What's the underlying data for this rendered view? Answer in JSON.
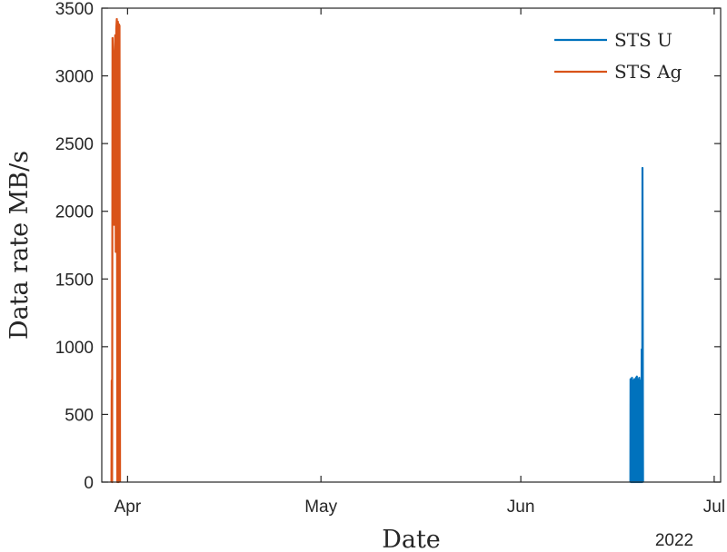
{
  "chart_data": {
    "type": "line",
    "title": "",
    "xlabel": "Date",
    "ylabel": "Data rate MB/s",
    "x_secondary_label": "2022",
    "x_ticks": [
      "Apr",
      "May",
      "Jun",
      "Jul"
    ],
    "x_tick_dates": [
      "2022-04-01",
      "2022-05-01",
      "2022-06-01",
      "2022-07-01"
    ],
    "xlim": [
      "2022-03-28",
      "2022-07-02"
    ],
    "ylim": [
      0,
      3500
    ],
    "y_ticks": [
      0,
      500,
      1000,
      1500,
      2000,
      2500,
      3000,
      3500
    ],
    "grid": false,
    "legend_position": "top-right",
    "series": [
      {
        "name": "STS U",
        "color": "#0072BD",
        "points": [
          {
            "x": "2022-06-18 00:00",
            "y": 0
          },
          {
            "x": "2022-06-18 00:30",
            "y": 760
          },
          {
            "x": "2022-06-18 02:00",
            "y": 0
          },
          {
            "x": "2022-06-18 03:00",
            "y": 740
          },
          {
            "x": "2022-06-18 05:00",
            "y": 0
          },
          {
            "x": "2022-06-18 06:00",
            "y": 770
          },
          {
            "x": "2022-06-18 08:00",
            "y": 0
          },
          {
            "x": "2022-06-18 09:00",
            "y": 750
          },
          {
            "x": "2022-06-18 11:00",
            "y": 0
          },
          {
            "x": "2022-06-18 12:00",
            "y": 730
          },
          {
            "x": "2022-06-18 14:00",
            "y": 0
          },
          {
            "x": "2022-06-18 15:00",
            "y": 760
          },
          {
            "x": "2022-06-18 17:00",
            "y": 0
          },
          {
            "x": "2022-06-18 18:00",
            "y": 740
          },
          {
            "x": "2022-06-18 20:00",
            "y": 0
          },
          {
            "x": "2022-06-18 21:00",
            "y": 770
          },
          {
            "x": "2022-06-18 23:00",
            "y": 0
          },
          {
            "x": "2022-06-19 00:00",
            "y": 780
          },
          {
            "x": "2022-06-19 02:00",
            "y": 0
          },
          {
            "x": "2022-06-19 03:00",
            "y": 760
          },
          {
            "x": "2022-06-19 05:00",
            "y": 0
          },
          {
            "x": "2022-06-19 06:00",
            "y": 740
          },
          {
            "x": "2022-06-19 08:00",
            "y": 0
          },
          {
            "x": "2022-06-19 09:00",
            "y": 770
          },
          {
            "x": "2022-06-19 11:00",
            "y": 0
          },
          {
            "x": "2022-06-19 12:00",
            "y": 750
          },
          {
            "x": "2022-06-19 14:00",
            "y": 0
          },
          {
            "x": "2022-06-19 15:00",
            "y": 610
          },
          {
            "x": "2022-06-19 17:00",
            "y": 0
          },
          {
            "x": "2022-06-19 18:00",
            "y": 980
          },
          {
            "x": "2022-06-19 20:00",
            "y": 0
          },
          {
            "x": "2022-06-19 21:00",
            "y": 2320
          },
          {
            "x": "2022-06-19 23:00",
            "y": 0
          }
        ]
      },
      {
        "name": "STS Ag",
        "color": "#D95319",
        "points": [
          {
            "x": "2022-03-29 12:00",
            "y": 0
          },
          {
            "x": "2022-03-29 13:00",
            "y": 750
          },
          {
            "x": "2022-03-29 14:30",
            "y": 0
          },
          {
            "x": "2022-03-29 16:00",
            "y": 3280
          },
          {
            "x": "2022-03-29 18:00",
            "y": 3100
          },
          {
            "x": "2022-03-29 20:00",
            "y": 3050
          },
          {
            "x": "2022-03-29 22:00",
            "y": 1900
          },
          {
            "x": "2022-03-30 00:00",
            "y": 3150
          },
          {
            "x": "2022-03-30 02:00",
            "y": 3300
          },
          {
            "x": "2022-03-30 04:00",
            "y": 1700
          },
          {
            "x": "2022-03-30 06:00",
            "y": 3350
          },
          {
            "x": "2022-03-30 08:00",
            "y": 3420
          },
          {
            "x": "2022-03-30 10:00",
            "y": 0
          },
          {
            "x": "2022-03-30 12:00",
            "y": 3400
          },
          {
            "x": "2022-03-30 14:00",
            "y": 3300
          },
          {
            "x": "2022-03-30 15:00",
            "y": 0
          },
          {
            "x": "2022-03-30 16:00",
            "y": 3380
          },
          {
            "x": "2022-03-30 18:00",
            "y": 3370
          },
          {
            "x": "2022-03-30 20:00",
            "y": 0
          }
        ]
      }
    ]
  }
}
